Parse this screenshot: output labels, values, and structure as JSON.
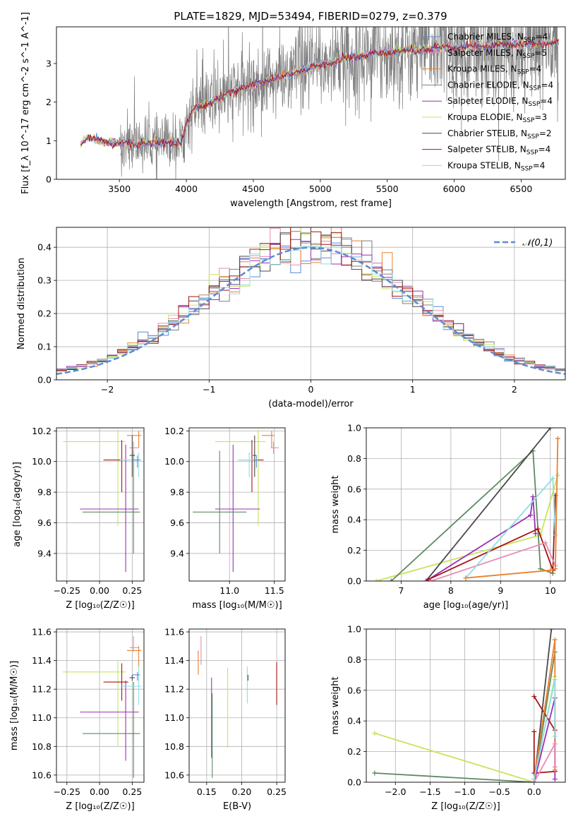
{
  "figure_title": "PLATE=1829, MJD=53494, FIBERID=0279, z=0.379",
  "colors": {
    "Chabrier MILES": "#5b8bd6",
    "Salpeter MILES": "#e58ab8",
    "Kroupa MILES": "#e8822e",
    "Chabrier ELODIE": "#7f7f7f",
    "Salpeter ELODIE": "#9b2fb6",
    "Kroupa ELODIE": "#c9e35c",
    "Chabrier STELIB": "#4a4a4a",
    "Salpeter STELIB": "#a51515",
    "Kroupa STELIB": "#8fdde3",
    "extra": "#5e8a60",
    "normal": "#5b8bd6"
  },
  "chart_data": [
    {
      "id": "spectrum",
      "type": "line",
      "xlabel": "wavelength [Angstrom, rest frame]",
      "ylabel": "Flux [f_λ 10^-17 erg cm^-2 s^-1 A^-1]",
      "xlim": [
        3030,
        6830
      ],
      "ylim": [
        0,
        3.95
      ],
      "xticks": [
        3500,
        4000,
        4500,
        5000,
        5500,
        6000,
        6500
      ],
      "yticks": [
        0,
        1,
        2,
        3
      ],
      "legend_position": "top-right",
      "legend": [
        {
          "name": "Chabrier MILES",
          "nssp": "4"
        },
        {
          "name": "Salpeter MILES",
          "nssp": "5"
        },
        {
          "name": "Kroupa MILES",
          "nssp": "4"
        },
        {
          "name": "Chabrier ELODIE",
          "nssp": "4"
        },
        {
          "name": "Salpeter ELODIE",
          "nssp": "4"
        },
        {
          "name": "Kroupa ELODIE",
          "nssp": "3"
        },
        {
          "name": "Chabrier STELIB",
          "nssp": "2"
        },
        {
          "name": "Salpeter STELIB",
          "nssp": "4"
        },
        {
          "name": "Kroupa STELIB",
          "nssp": "4"
        }
      ],
      "model_continuum": {
        "x": [
          3210,
          3260,
          3300,
          3400,
          3500,
          3600,
          3700,
          3800,
          3900,
          3960,
          4000,
          4050,
          4100,
          4200,
          4300,
          4400,
          4500,
          4600,
          4700,
          4800,
          4900,
          5000,
          5100,
          5200,
          5300,
          5400,
          5500,
          5600,
          5800,
          6000,
          6200,
          6400,
          6600,
          6780
        ],
        "y": [
          0.9,
          1.1,
          1.05,
          0.95,
          0.95,
          0.9,
          0.95,
          0.9,
          1.0,
          0.95,
          1.4,
          1.8,
          1.9,
          2.0,
          2.2,
          2.35,
          2.45,
          2.55,
          2.65,
          2.75,
          2.85,
          2.95,
          3.05,
          3.15,
          3.2,
          3.25,
          3.3,
          3.32,
          3.38,
          3.42,
          3.45,
          3.5,
          3.52,
          3.55
        ]
      },
      "data_noise_start": 3500
    },
    {
      "id": "residual-histogram",
      "type": "bar",
      "xlabel": "(data-model)/error",
      "ylabel": "Normed distribution",
      "xlim": [
        -2.5,
        2.5
      ],
      "ylim": [
        0,
        0.46
      ],
      "xticks": [
        -2,
        -1,
        0,
        1,
        2
      ],
      "yticks": [
        0.0,
        0.1,
        0.2,
        0.3,
        0.4
      ],
      "bins": 50,
      "legend": [
        "𝒩(0,1)"
      ],
      "legend_position": "top-right",
      "reference_curve": "normal(0,1)"
    },
    {
      "id": "age-vs-Z",
      "type": "scatter",
      "xlabel": "Z [log₁₀(Z/Z☉)]",
      "ylabel": "age  [log₁₀(age/yr)]",
      "xlim": [
        -0.33,
        0.34
      ],
      "ylim": [
        9.22,
        10.22
      ],
      "xticks": [
        -0.25,
        0.0,
        0.25
      ],
      "xticklabels": [
        "−0.25",
        "0.00",
        "0.25"
      ],
      "yticks": [
        9.4,
        9.6,
        9.8,
        10.0,
        10.2
      ],
      "errorbars": [
        {
          "color": "Kroupa ELODIE",
          "x": 0.14,
          "xerr": [
            0.42,
            0.06
          ],
          "y": 10.13,
          "yerr": [
            0.55,
            0.08
          ]
        },
        {
          "color": "Salpeter ELODIE",
          "x": 0.2,
          "xerr": [
            0.35,
            0.1
          ],
          "y": 9.69,
          "yerr": [
            0.41,
            0.42
          ]
        },
        {
          "color": "extra",
          "x": 0.26,
          "xerr": [
            0.39,
            0.05
          ],
          "y": 9.67,
          "yerr": [
            0.27,
            0.4
          ]
        },
        {
          "color": "Salpeter STELIB",
          "x": 0.17,
          "xerr": [
            0.14,
            0.05
          ],
          "y": 10.01,
          "yerr": [
            0.21,
            0.13
          ]
        },
        {
          "color": "Kroupa STELIB",
          "x": 0.3,
          "xerr": [
            0.14,
            0.02
          ],
          "y": 10.01,
          "yerr": [
            0.11,
            0.05
          ]
        },
        {
          "color": "Kroupa MILES",
          "x": 0.3,
          "xerr": [
            0.09,
            0.02
          ],
          "y": 10.17,
          "yerr": [
            0.08,
            0.03
          ]
        },
        {
          "color": "Salpeter MILES",
          "x": 0.26,
          "xerr": [
            0.03,
            0.04
          ],
          "y": 10.09,
          "yerr": [
            0.04,
            0.04
          ]
        },
        {
          "color": "Chabrier STELIB",
          "x": 0.25,
          "xerr": [
            0.02,
            0.02
          ],
          "y": 10.04,
          "yerr": [
            0.14,
            0.13
          ]
        },
        {
          "color": "Chabrier MILES",
          "x": 0.29,
          "xerr": [
            0.04,
            0.02
          ],
          "y": 10.01,
          "yerr": [
            0.05,
            0.03
          ]
        }
      ]
    },
    {
      "id": "age-vs-mass",
      "type": "scatter",
      "xlabel": "mass [log₁₀(M/M☉)]",
      "ylabel": "",
      "xlim": [
        10.55,
        11.62
      ],
      "ylim": [
        9.22,
        10.22
      ],
      "xticks": [
        11.0,
        11.5
      ],
      "xticklabels": [
        "11.0",
        "11.5"
      ],
      "yticks": [
        9.4,
        9.6,
        9.8,
        10.0,
        10.2
      ],
      "errorbars": [
        {
          "color": "Kroupa ELODIE",
          "x": 11.32,
          "xerr": [
            0.48,
            0.08
          ],
          "y": 10.13,
          "yerr": [
            0.55,
            0.08
          ]
        },
        {
          "color": "Salpeter ELODIE",
          "x": 11.04,
          "xerr": [
            0.2,
            0.3
          ],
          "y": 9.69,
          "yerr": [
            0.41,
            0.42
          ]
        },
        {
          "color": "extra",
          "x": 10.89,
          "xerr": [
            0.3,
            0.3
          ],
          "y": 9.67,
          "yerr": [
            0.27,
            0.4
          ]
        },
        {
          "color": "Salpeter STELIB",
          "x": 11.25,
          "xerr": [
            0.14,
            0.13
          ],
          "y": 10.01,
          "yerr": [
            0.21,
            0.13
          ]
        },
        {
          "color": "Kroupa STELIB",
          "x": 11.22,
          "xerr": [
            0.13,
            0.05
          ],
          "y": 10.01,
          "yerr": [
            0.11,
            0.05
          ]
        },
        {
          "color": "Kroupa MILES",
          "x": 11.47,
          "xerr": [
            0.11,
            0.03
          ],
          "y": 10.17,
          "yerr": [
            0.08,
            0.03
          ]
        },
        {
          "color": "Salpeter MILES",
          "x": 11.49,
          "xerr": [
            0.03,
            0.06
          ],
          "y": 10.09,
          "yerr": [
            0.04,
            0.04
          ]
        },
        {
          "color": "Chabrier STELIB",
          "x": 11.28,
          "xerr": [
            0.02,
            0.02
          ],
          "y": 10.04,
          "yerr": [
            0.14,
            0.13
          ]
        },
        {
          "color": "Chabrier MILES",
          "x": 11.3,
          "xerr": [
            0.04,
            0.02
          ],
          "y": 10.01,
          "yerr": [
            0.05,
            0.03
          ]
        }
      ]
    },
    {
      "id": "weight-vs-age",
      "type": "line",
      "xlabel": "age  [log₁₀(age/yr)]",
      "ylabel": "mass weight",
      "xlim": [
        6.3,
        10.3
      ],
      "ylim": [
        0,
        1.0
      ],
      "xticks": [
        7,
        8,
        9,
        10
      ],
      "yticks": [
        0.0,
        0.2,
        0.4,
        0.6,
        0.8,
        1.0
      ],
      "series": [
        {
          "color": "Kroupa ELODIE",
          "points": [
            [
              6.5,
              0.0
            ],
            [
              9.8,
              0.3
            ],
            [
              10.15,
              0.69
            ]
          ]
        },
        {
          "color": "extra",
          "points": [
            [
              6.8,
              0.0
            ],
            [
              9.65,
              0.85
            ],
            [
              9.8,
              0.08
            ],
            [
              10.05,
              0.05
            ]
          ]
        },
        {
          "color": "Chabrier STELIB",
          "points": [
            [
              7.5,
              0.0
            ],
            [
              10.0,
              1.0
            ]
          ]
        },
        {
          "color": "Salpeter ELODIE",
          "points": [
            [
              7.5,
              0.0
            ],
            [
              9.6,
              0.43
            ],
            [
              9.65,
              0.55
            ],
            [
              9.7,
              0.31
            ]
          ]
        },
        {
          "color": "Salpeter STELIB",
          "points": [
            [
              7.55,
              0.01
            ],
            [
              9.75,
              0.34
            ],
            [
              10.05,
              0.07
            ],
            [
              10.1,
              0.56
            ]
          ]
        },
        {
          "color": "Salpeter MILES",
          "points": [
            [
              7.6,
              0.0
            ],
            [
              9.9,
              0.25
            ],
            [
              10.1,
              0.1
            ]
          ]
        },
        {
          "color": "Kroupa STELIB",
          "points": [
            [
              8.3,
              0.02
            ],
            [
              10.05,
              0.67
            ],
            [
              10.1,
              0.3
            ]
          ]
        },
        {
          "color": "Kroupa MILES",
          "points": [
            [
              8.3,
              0.02
            ],
            [
              10.0,
              0.07
            ],
            [
              10.1,
              0.08
            ],
            [
              10.15,
              0.93
            ]
          ]
        }
      ]
    },
    {
      "id": "mass-vs-Z",
      "type": "scatter",
      "xlabel": "Z [log₁₀(Z/Z☉)]",
      "ylabel": "mass [log₁₀(M/M☉)]",
      "xlim": [
        -0.33,
        0.34
      ],
      "ylim": [
        10.55,
        11.62
      ],
      "xticks": [
        -0.25,
        0.0,
        0.25
      ],
      "xticklabels": [
        "−0.25",
        "0.00",
        "0.25"
      ],
      "yticks": [
        10.6,
        10.8,
        11.0,
        11.2,
        11.4,
        11.6
      ],
      "errorbars": [
        {
          "color": "Kroupa ELODIE",
          "x": 0.14,
          "xerr": [
            0.42,
            0.06
          ],
          "y": 11.32,
          "yerr": [
            0.52,
            0.08
          ]
        },
        {
          "color": "Salpeter ELODIE",
          "x": 0.2,
          "xerr": [
            0.35,
            0.1
          ],
          "y": 11.04,
          "yerr": [
            0.34,
            0.22
          ]
        },
        {
          "color": "extra",
          "x": 0.26,
          "xerr": [
            0.39,
            0.05
          ],
          "y": 10.89,
          "yerr": [
            0.31,
            0.36
          ]
        },
        {
          "color": "Salpeter STELIB",
          "x": 0.17,
          "xerr": [
            0.14,
            0.05
          ],
          "y": 11.25,
          "yerr": [
            0.13,
            0.13
          ]
        },
        {
          "color": "Kroupa STELIB",
          "x": 0.3,
          "xerr": [
            0.14,
            0.02
          ],
          "y": 11.22,
          "yerr": [
            0.13,
            0.14
          ]
        },
        {
          "color": "Kroupa MILES",
          "x": 0.3,
          "xerr": [
            0.09,
            0.02
          ],
          "y": 11.47,
          "yerr": [
            0.11,
            0.03
          ]
        },
        {
          "color": "Salpeter MILES",
          "x": 0.26,
          "xerr": [
            0.03,
            0.04
          ],
          "y": 11.49,
          "yerr": [
            0.03,
            0.08
          ]
        },
        {
          "color": "Chabrier STELIB",
          "x": 0.25,
          "xerr": [
            0.02,
            0.02
          ],
          "y": 11.28,
          "yerr": [
            0.02,
            0.02
          ]
        },
        {
          "color": "Chabrier MILES",
          "x": 0.29,
          "xerr": [
            0.04,
            0.02
          ],
          "y": 11.3,
          "yerr": [
            0.04,
            0.02
          ]
        }
      ]
    },
    {
      "id": "mass-vs-EBV",
      "type": "scatter",
      "xlabel": "E(B-V)",
      "ylabel": "",
      "xlim": [
        0.125,
        0.262
      ],
      "ylim": [
        10.55,
        11.62
      ],
      "xticks": [
        0.15,
        0.2,
        0.25
      ],
      "xticklabels": [
        "0.15",
        "0.20",
        "0.25"
      ],
      "yticks": [
        10.6,
        10.8,
        11.0,
        11.2,
        11.4,
        11.6
      ],
      "errorbars": [
        {
          "color": "Kroupa MILES",
          "x": 0.138,
          "y": 11.42,
          "yerr": [
            0.12,
            0.05
          ]
        },
        {
          "color": "Salpeter MILES",
          "x": 0.142,
          "y": 11.47,
          "yerr": [
            0.1,
            0.1
          ]
        },
        {
          "color": "Salpeter ELODIE",
          "x": 0.157,
          "y": 11.0,
          "yerr": [
            0.28,
            0.28
          ]
        },
        {
          "color": "extra",
          "x": 0.158,
          "y": 10.89,
          "yerr": [
            0.31,
            0.28
          ]
        },
        {
          "color": "Kroupa ELODIE",
          "x": 0.18,
          "y": 11.07,
          "yerr": [
            0.28,
            0.28
          ]
        },
        {
          "color": "Kroupa STELIB",
          "x": 0.208,
          "y": 11.22,
          "yerr": [
            0.12,
            0.14
          ]
        },
        {
          "color": "Chabrier STELIB",
          "x": 0.209,
          "y": 11.28,
          "yerr": [
            0.02,
            0.02
          ]
        },
        {
          "color": "Salpeter STELIB",
          "x": 0.25,
          "y": 11.24,
          "yerr": [
            0.15,
            0.15
          ]
        }
      ]
    },
    {
      "id": "weight-vs-Z",
      "type": "line",
      "xlabel": "Z [log₁₀(Z/Z☉)]",
      "ylabel": "mass weight",
      "xlim": [
        -2.42,
        0.45
      ],
      "ylim": [
        0,
        1.0
      ],
      "xticks": [
        -2.0,
        -1.5,
        -1.0,
        -0.5,
        0.0
      ],
      "xticklabels": [
        "−2.0",
        "−1.5",
        "−1.0",
        "−0.5",
        "0.0"
      ],
      "yticks": [
        0.0,
        0.2,
        0.4,
        0.6,
        0.8,
        1.0
      ],
      "series": [
        {
          "color": "Kroupa ELODIE",
          "points": [
            [
              -2.3,
              0.32
            ],
            [
              0.0,
              0.0
            ],
            [
              0.3,
              0.69
            ]
          ]
        },
        {
          "color": "extra",
          "points": [
            [
              -2.3,
              0.06
            ],
            [
              0.0,
              0.0
            ],
            [
              0.3,
              0.85
            ]
          ]
        },
        {
          "color": "Chabrier STELIB",
          "points": [
            [
              0.0,
              0.0
            ],
            [
              0.25,
              1.0
            ]
          ]
        },
        {
          "color": "Salpeter STELIB",
          "points": [
            [
              0.0,
              0.56
            ],
            [
              0.3,
              0.34
            ],
            [
              0.3,
              0.07
            ],
            [
              0.0,
              0.06
            ],
            [
              0.0,
              0.33
            ]
          ]
        },
        {
          "color": "Salpeter ELODIE",
          "points": [
            [
              0.0,
              0.0
            ],
            [
              0.3,
              0.55
            ],
            [
              0.3,
              0.02
            ]
          ]
        },
        {
          "color": "Kroupa MILES",
          "points": [
            [
              0.0,
              0.02
            ],
            [
              0.3,
              0.93
            ],
            [
              0.3,
              0.08
            ]
          ]
        },
        {
          "color": "Kroupa STELIB",
          "points": [
            [
              0.0,
              0.02
            ],
            [
              0.3,
              0.67
            ],
            [
              0.3,
              0.3
            ]
          ]
        },
        {
          "color": "Salpeter MILES",
          "points": [
            [
              0.0,
              0.0
            ],
            [
              0.3,
              0.25
            ],
            [
              0.3,
              0.1
            ]
          ]
        }
      ]
    }
  ]
}
